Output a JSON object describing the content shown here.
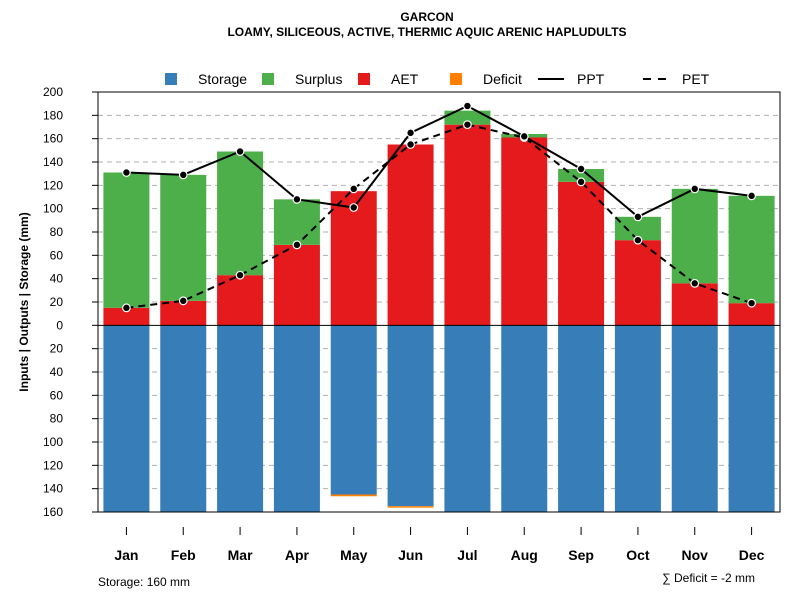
{
  "title": "GARCON",
  "subtitle": "LOAMY, SILICEOUS, ACTIVE, THERMIC AQUIC ARENIC HAPLUDULTS",
  "ylabel": "Inputs | Outputs | Storage     (mm)",
  "footer": {
    "storage_note": "Storage: 160 mm",
    "deficit_note": "∑ Deficit = -2 mm"
  },
  "legend": [
    {
      "key": "storage",
      "label": "Storage",
      "kind": "box",
      "color": "#377EB8"
    },
    {
      "key": "surplus",
      "label": "Surplus",
      "kind": "box",
      "color": "#4DAF4A"
    },
    {
      "key": "aet",
      "label": "AET",
      "kind": "box",
      "color": "#E41A1C"
    },
    {
      "key": "deficit",
      "label": "Deficit",
      "kind": "box",
      "color": "#FF7F00"
    },
    {
      "key": "ppt",
      "label": "PPT",
      "kind": "solid",
      "color": "#000000"
    },
    {
      "key": "pet",
      "label": "PET",
      "kind": "dashed",
      "color": "#000000"
    }
  ],
  "chart_data": {
    "type": "bar",
    "categories": [
      "Jan",
      "Feb",
      "Mar",
      "Apr",
      "May",
      "Jun",
      "Jul",
      "Aug",
      "Sep",
      "Oct",
      "Nov",
      "Dec"
    ],
    "ylim": [
      -160,
      200
    ],
    "yticks": [
      {
        "value": 200,
        "label": "200"
      },
      {
        "value": 180,
        "label": "180"
      },
      {
        "value": 160,
        "label": "160"
      },
      {
        "value": 140,
        "label": "140"
      },
      {
        "value": 120,
        "label": "120"
      },
      {
        "value": 100,
        "label": "100"
      },
      {
        "value": 80,
        "label": "80"
      },
      {
        "value": 60,
        "label": "60"
      },
      {
        "value": 40,
        "label": "40"
      },
      {
        "value": 20,
        "label": "20"
      },
      {
        "value": 0,
        "label": "0"
      },
      {
        "value": -20,
        "label": "20"
      },
      {
        "value": -40,
        "label": "40"
      },
      {
        "value": -60,
        "label": "60"
      },
      {
        "value": -80,
        "label": "80"
      },
      {
        "value": -100,
        "label": "100"
      },
      {
        "value": -120,
        "label": "120"
      },
      {
        "value": -140,
        "label": "140"
      },
      {
        "value": -160,
        "label": "160"
      }
    ],
    "grid": true,
    "legend_position": "top",
    "series": [
      {
        "name": "AET",
        "values": [
          15,
          21,
          43,
          69,
          115,
          155,
          172,
          161,
          123,
          73,
          36,
          19
        ]
      },
      {
        "name": "Surplus",
        "values": [
          116,
          108,
          106,
          39,
          0,
          0,
          12,
          3,
          11,
          20,
          81,
          92
        ]
      },
      {
        "name": "Storage",
        "values": [
          160,
          160,
          160,
          160,
          145,
          155,
          160,
          160,
          160,
          160,
          160,
          160
        ]
      },
      {
        "name": "Deficit",
        "values": [
          0,
          0,
          0,
          0,
          1.5,
          1,
          0,
          0,
          0,
          0,
          0,
          0
        ]
      },
      {
        "name": "PPT",
        "values": [
          131,
          129,
          149,
          108,
          101,
          165,
          188,
          162,
          134,
          93,
          117,
          111
        ]
      },
      {
        "name": "PET",
        "values": [
          15,
          21,
          43,
          69,
          117,
          155,
          172,
          161,
          123,
          73,
          36,
          19
        ]
      }
    ]
  }
}
